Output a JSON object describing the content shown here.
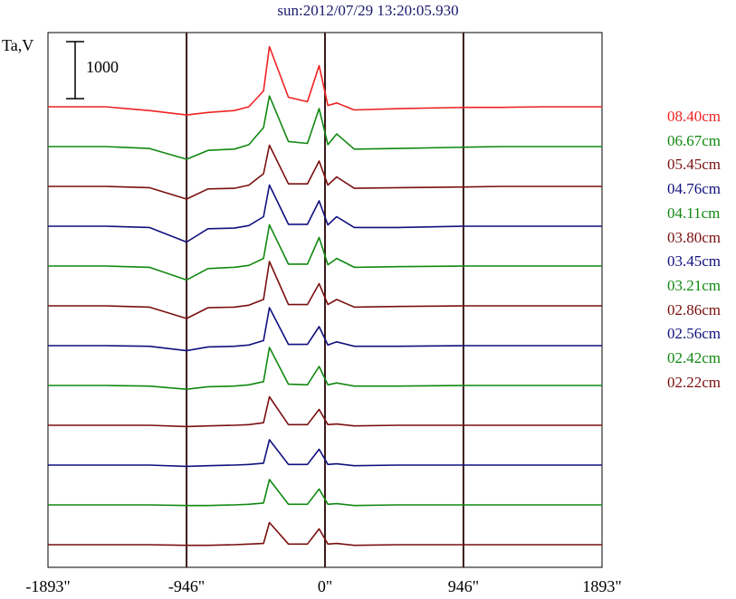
{
  "title": "sun:2012/07/29 13:20:05.930",
  "ylabel": "Ta,V",
  "scale_bar_label": "1000",
  "colors": {
    "red": "#ee2222",
    "green": "#118811",
    "maroon": "#7a0f0f",
    "blue": "#10107e"
  },
  "chart_data": {
    "type": "line",
    "title": "sun:2012/07/29 13:20:05.930",
    "ylabel": "Ta,V",
    "xlabel": "",
    "x_ticks": [
      "-1893\"",
      "-946\"",
      "0\"",
      "946\"",
      "1893\""
    ],
    "x_tick_values": [
      -1893,
      -946,
      0,
      946,
      1893
    ],
    "xlim": [
      -1893,
      1893
    ],
    "vertical_lines": [
      -946,
      0,
      946
    ],
    "scale_bar": 1000,
    "series": [
      {
        "name": "08.40cm",
        "color": "#ee2222",
        "amplitude": 1.0,
        "x": [
          -1893,
          -1500,
          -1200,
          -946,
          -800,
          -620,
          -520,
          -420,
          -380,
          -250,
          -120,
          -40,
          20,
          80,
          200,
          500,
          946,
          1200,
          1500,
          1893
        ],
        "y": [
          0,
          0,
          -60,
          -130,
          -90,
          -60,
          0,
          250,
          950,
          150,
          80,
          650,
          20,
          60,
          -50,
          -30,
          -10,
          -10,
          0,
          0
        ]
      },
      {
        "name": "06.67cm",
        "color": "#118811",
        "amplitude": 0.9,
        "x": [
          -1893,
          -1500,
          -1200,
          -946,
          -800,
          -620,
          -520,
          -420,
          -380,
          -250,
          -120,
          -40,
          20,
          80,
          200,
          500,
          946,
          1200,
          1500,
          1893
        ],
        "y": [
          0,
          0,
          -30,
          -200,
          -60,
          -40,
          30,
          300,
          800,
          80,
          50,
          600,
          30,
          200,
          -40,
          -30,
          -10,
          0,
          0,
          0
        ]
      },
      {
        "name": "05.45cm",
        "color": "#7a0f0f",
        "amplitude": 0.8,
        "x": [
          -1893,
          -1500,
          -1200,
          -946,
          -800,
          -620,
          -520,
          -420,
          -380,
          -250,
          -120,
          -40,
          20,
          80,
          200,
          500,
          946,
          1200,
          1500,
          1893
        ],
        "y": [
          0,
          0,
          -20,
          -200,
          -40,
          -30,
          20,
          200,
          650,
          40,
          40,
          400,
          20,
          150,
          -30,
          -20,
          -10,
          0,
          0,
          0
        ]
      },
      {
        "name": "04.76cm",
        "color": "#10107e",
        "amplitude": 0.8,
        "x": [
          -1893,
          -1500,
          -1200,
          -946,
          -800,
          -620,
          -520,
          -420,
          -380,
          -250,
          -120,
          -40,
          20,
          80,
          200,
          500,
          946,
          1200,
          1500,
          1893
        ],
        "y": [
          0,
          0,
          -20,
          -250,
          -40,
          -30,
          10,
          150,
          650,
          30,
          30,
          400,
          20,
          150,
          -20,
          -20,
          0,
          0,
          0,
          0
        ]
      },
      {
        "name": "04.11cm",
        "color": "#118811",
        "amplitude": 0.8,
        "x": [
          -1893,
          -1500,
          -1200,
          -946,
          -800,
          -620,
          -520,
          -420,
          -380,
          -250,
          -120,
          -40,
          20,
          80,
          200,
          500,
          946,
          1200,
          1500,
          1893
        ],
        "y": [
          0,
          0,
          -20,
          -220,
          -40,
          -20,
          10,
          120,
          650,
          30,
          30,
          450,
          20,
          120,
          -20,
          -10,
          0,
          0,
          0,
          0
        ]
      },
      {
        "name": "03.80cm",
        "color": "#7a0f0f",
        "amplitude": 0.8,
        "x": [
          -1893,
          -1500,
          -1200,
          -946,
          -800,
          -620,
          -520,
          -420,
          -380,
          -250,
          -120,
          -40,
          20,
          80,
          200,
          500,
          946,
          1200,
          1500,
          1893
        ],
        "y": [
          0,
          0,
          -20,
          -200,
          -30,
          -20,
          10,
          100,
          700,
          20,
          20,
          350,
          20,
          100,
          -20,
          -10,
          0,
          0,
          0,
          0
        ]
      },
      {
        "name": "03.45cm",
        "color": "#10107e",
        "amplitude": 0.7,
        "x": [
          -1893,
          -1500,
          -1200,
          -946,
          -800,
          -620,
          -520,
          -420,
          -380,
          -250,
          -120,
          -40,
          20,
          80,
          200,
          500,
          946,
          1200,
          1500,
          1893
        ],
        "y": [
          0,
          0,
          -10,
          -80,
          -20,
          -10,
          10,
          80,
          600,
          20,
          20,
          300,
          10,
          60,
          -10,
          -10,
          0,
          0,
          0,
          0
        ]
      },
      {
        "name": "03.21cm",
        "color": "#118811",
        "amplitude": 0.7,
        "x": [
          -1893,
          -1500,
          -1200,
          -946,
          -800,
          -620,
          -520,
          -420,
          -380,
          -250,
          -120,
          -40,
          20,
          80,
          200,
          500,
          946,
          1200,
          1500,
          1893
        ],
        "y": [
          0,
          0,
          -10,
          -60,
          -20,
          -10,
          10,
          60,
          600,
          20,
          10,
          300,
          10,
          40,
          -10,
          -10,
          0,
          0,
          0,
          0
        ]
      },
      {
        "name": "02.86cm",
        "color": "#7a0f0f",
        "amplitude": 0.6,
        "x": [
          -1893,
          -1500,
          -1200,
          -946,
          -800,
          -620,
          -520,
          -420,
          -380,
          -250,
          -120,
          -40,
          20,
          80,
          200,
          500,
          946,
          1200,
          1500,
          1893
        ],
        "y": [
          0,
          0,
          0,
          -20,
          -10,
          0,
          10,
          40,
          450,
          10,
          10,
          250,
          10,
          20,
          -10,
          0,
          0,
          0,
          0,
          0
        ]
      },
      {
        "name": "02.56cm",
        "color": "#10107e",
        "amplitude": 0.6,
        "x": [
          -1893,
          -1500,
          -1200,
          -946,
          -800,
          -620,
          -520,
          -420,
          -380,
          -250,
          -120,
          -40,
          20,
          80,
          200,
          500,
          946,
          1200,
          1500,
          1893
        ],
        "y": [
          0,
          0,
          0,
          -20,
          -10,
          0,
          10,
          30,
          400,
          10,
          10,
          250,
          10,
          20,
          -10,
          0,
          0,
          0,
          0,
          0
        ]
      },
      {
        "name": "02.42cm",
        "color": "#118811",
        "amplitude": 0.5,
        "x": [
          -1893,
          -1500,
          -1200,
          -946,
          -800,
          -620,
          -520,
          -420,
          -380,
          -250,
          -120,
          -40,
          20,
          80,
          200,
          500,
          946,
          1200,
          1500,
          1893
        ],
        "y": [
          0,
          0,
          0,
          -10,
          -10,
          0,
          10,
          30,
          400,
          10,
          10,
          250,
          10,
          20,
          -10,
          0,
          0,
          0,
          0,
          0
        ]
      },
      {
        "name": "02.22cm",
        "color": "#7a0f0f",
        "amplitude": 0.5,
        "x": [
          -1893,
          -1500,
          -1200,
          -946,
          -800,
          -620,
          -520,
          -420,
          -380,
          -250,
          -120,
          -40,
          20,
          80,
          200,
          500,
          946,
          1200,
          1500,
          1893
        ],
        "y": [
          0,
          0,
          0,
          -10,
          -10,
          0,
          10,
          20,
          350,
          10,
          10,
          250,
          10,
          20,
          -10,
          0,
          0,
          0,
          0,
          0
        ]
      }
    ]
  }
}
